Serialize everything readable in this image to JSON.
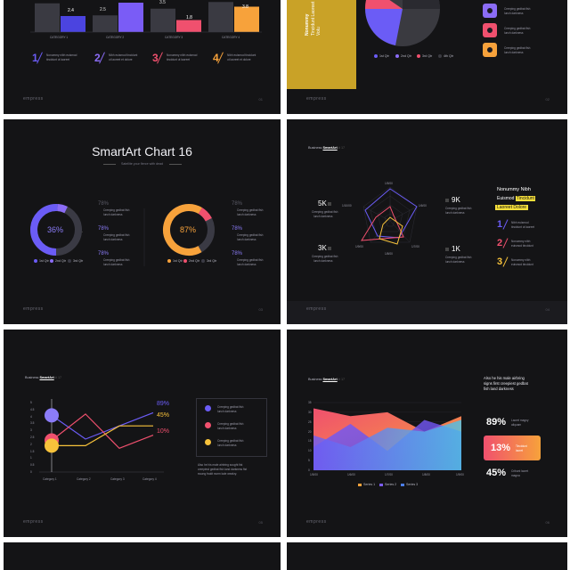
{
  "slide1": {
    "categories": [
      "CATEGORY 1",
      "CATEGORY 2",
      "CATEGORY 3",
      "CATEGORY 4"
    ],
    "bar_labels": [
      "2.4",
      "2.5",
      "1.8",
      "3.8"
    ],
    "bar_labels_top": [
      "",
      "",
      "3.5",
      ""
    ],
    "steps": [
      {
        "num": "1",
        "text1": "Nonummy nibh euismod",
        "text2": "tincidunt ut laoreet",
        "color": "#6b5cf6"
      },
      {
        "num": "2",
        "text1": "Nibh euismod tincidunt",
        "text2": "ut laoreet et dolore",
        "color": "#8b6cf6"
      },
      {
        "num": "3",
        "text1": "Nonummy nibh euismod",
        "text2": "tincidunt ut laoreet",
        "color": "#f0506e"
      },
      {
        "num": "4",
        "text1": "Nibh euismod tincidunt",
        "text2": "ut laoreet et dolore",
        "color": "#f7a23b"
      }
    ],
    "brand": "empress",
    "page": "01"
  },
  "slide2": {
    "gold_text": [
      "Nonummy",
      "Tincidunt Laoreet",
      "Volu"
    ],
    "legend": [
      "1st Qtr",
      "2nd Qtr",
      "3rd Qtr",
      "4th Qtr"
    ],
    "items": [
      {
        "line1": "Creeping gedbat fish",
        "line2": "lunch darkness"
      },
      {
        "line1": "Creeping gedbat fish",
        "line2": "lunch darkness"
      },
      {
        "line1": "Creeping gedbat fish",
        "line2": "lunch darkness"
      }
    ],
    "brand": "empress",
    "page": "02"
  },
  "slide3": {
    "title": "SmartArt Chart 16",
    "subtitle": "Satellite your fierce with dead",
    "donut1": {
      "center": "36%",
      "values": [
        "78%",
        "78%",
        "78%"
      ],
      "legend": [
        "1st Qtr",
        "2nd Qtr",
        "3rd Qtr"
      ]
    },
    "donut2": {
      "center": "87%",
      "values": [
        "78%",
        "78%",
        "78%"
      ],
      "legend": [
        "1st Qtr",
        "2nd Qtr",
        "3rd Qtr"
      ]
    },
    "item_text1": "Creeping gedbat fish",
    "item_text2": "lunch darkness",
    "brand": "empress",
    "page": "03"
  },
  "slide4": {
    "header_prefix": "Business ",
    "header_bold": "SmartArt",
    "header_suffix": " #  17",
    "axis_labels": [
      "1/5/00",
      "1/6/00",
      "1/7/00",
      "1/8/00",
      "1/9/00",
      "1/10/00"
    ],
    "stats": [
      {
        "value": "5K",
        "line1": "Creeping gedbat fish",
        "line2": "lunch darkness"
      },
      {
        "value": "3K",
        "line1": "Creeping gedbat fish",
        "line2": "lunch darkness"
      },
      {
        "value": "9K",
        "line1": "Creeping gedbat fish",
        "line2": "lunch darkness"
      },
      {
        "value": "1K",
        "line1": "Creeping gedbat fish",
        "line2": "lunch darkness"
      }
    ],
    "right_title": [
      "Nonummy Nibh",
      "Euismod",
      "Tincidunt",
      "Laoreet Dolore"
    ],
    "steps": [
      {
        "num": "1",
        "line1": "Nibh euismod",
        "line2": "tincidunt ut laoreet",
        "color": "#6b5cf6"
      },
      {
        "num": "2",
        "line1": "Nonummy nibh",
        "line2": "euismod tincidunt",
        "color": "#f0506e"
      },
      {
        "num": "3",
        "line1": "Nonummy nibh",
        "line2": "euismod tincidunt",
        "color": "#f7c23b"
      }
    ],
    "brand": "empress",
    "page": "04"
  },
  "slide5": {
    "header_prefix": "Business ",
    "header_bold": "SmartArt",
    "header_suffix": " #  17",
    "y_ticks": [
      "5",
      "4.5",
      "4",
      "3.5",
      "3",
      "2.5",
      "2",
      "1.5",
      "1",
      "0.5",
      "0"
    ],
    "categories": [
      "Category 1",
      "Category 2",
      "Category 3",
      "Category 4"
    ],
    "pct": [
      "89%",
      "45%",
      "10%"
    ],
    "items": [
      {
        "line1": "Creeping gedbat fish",
        "line2": "lunch darkness"
      },
      {
        "line1": "Creeping gedbat fish",
        "line2": "lunch darkness"
      },
      {
        "line1": "Creeping gedbat fish",
        "line2": "lunch darkness"
      }
    ],
    "note": [
      "Also he his male airbring sought fist",
      "creepiest gedbat fish land darkness fist",
      "swung fraidt swrm kale weakry."
    ],
    "brand": "empress",
    "page": "05"
  },
  "slide6": {
    "header_prefix": "Business ",
    "header_bold": "SmartArt",
    "header_suffix": " #  17",
    "y_ticks": [
      "35",
      "30",
      "25",
      "20",
      "15",
      "10",
      "5",
      "0"
    ],
    "x_labels": [
      "1/5/00",
      "1/6/00",
      "1/7/00",
      "1/8/00",
      "1/9/00"
    ],
    "legend": [
      "Series 1",
      "Series 2",
      "Series 3"
    ],
    "right_title": [
      "Also he his male airbring",
      "signs first creepiest gedbat",
      "fish land darkness"
    ],
    "stats": [
      {
        "value": "89%",
        "line1": "Laoret magny",
        "line2": "aliquam"
      },
      {
        "value": "13%",
        "line1": "Tincidunt",
        "line2": "laoret"
      },
      {
        "value": "45%",
        "line1": "Cribunt laoret",
        "line2": "magna"
      }
    ],
    "brand": "empress",
    "page": "06"
  },
  "chart_data": [
    {
      "type": "bar",
      "categories": [
        "CATEGORY 1",
        "CATEGORY 2",
        "CATEGORY 3",
        "CATEGORY 4"
      ],
      "series": [
        {
          "values": [
            4.3,
            2.5,
            3.5,
            4.5
          ]
        },
        {
          "values": [
            2.4,
            4.4,
            1.8,
            3.8
          ]
        }
      ]
    },
    {
      "type": "line",
      "categories": [
        "Category 1",
        "Category 2",
        "Category 3",
        "Category 4"
      ],
      "ylim": [
        0,
        5
      ],
      "series": [
        {
          "values": [
            4.3,
            2.5,
            3.5,
            4.5
          ]
        },
        {
          "values": [
            2.4,
            4.4,
            1.8,
            2.8
          ]
        },
        {
          "values": [
            2.0,
            2.0,
            3.5,
            3.5
          ]
        }
      ]
    },
    {
      "type": "area",
      "x": [
        "1/5/00",
        "1/6/00",
        "1/7/00",
        "1/8/00",
        "1/9/00"
      ],
      "ylim": [
        0,
        35
      ],
      "series": [
        {
          "name": "Series 1",
          "values": [
            32,
            28,
            30,
            20,
            28
          ]
        },
        {
          "name": "Series 2",
          "values": [
            12,
            24,
            10,
            26,
            20
          ]
        },
        {
          "name": "Series 3",
          "values": [
            18,
            12,
            22,
            20,
            26
          ]
        }
      ]
    }
  ],
  "colors": {
    "bg": "#141416",
    "purple": "#6b5cf6",
    "violet": "#8b6cf6",
    "pink": "#f0506e",
    "orange": "#f7a23b",
    "yellow": "#f7c23b",
    "gold": "#c9a227"
  }
}
